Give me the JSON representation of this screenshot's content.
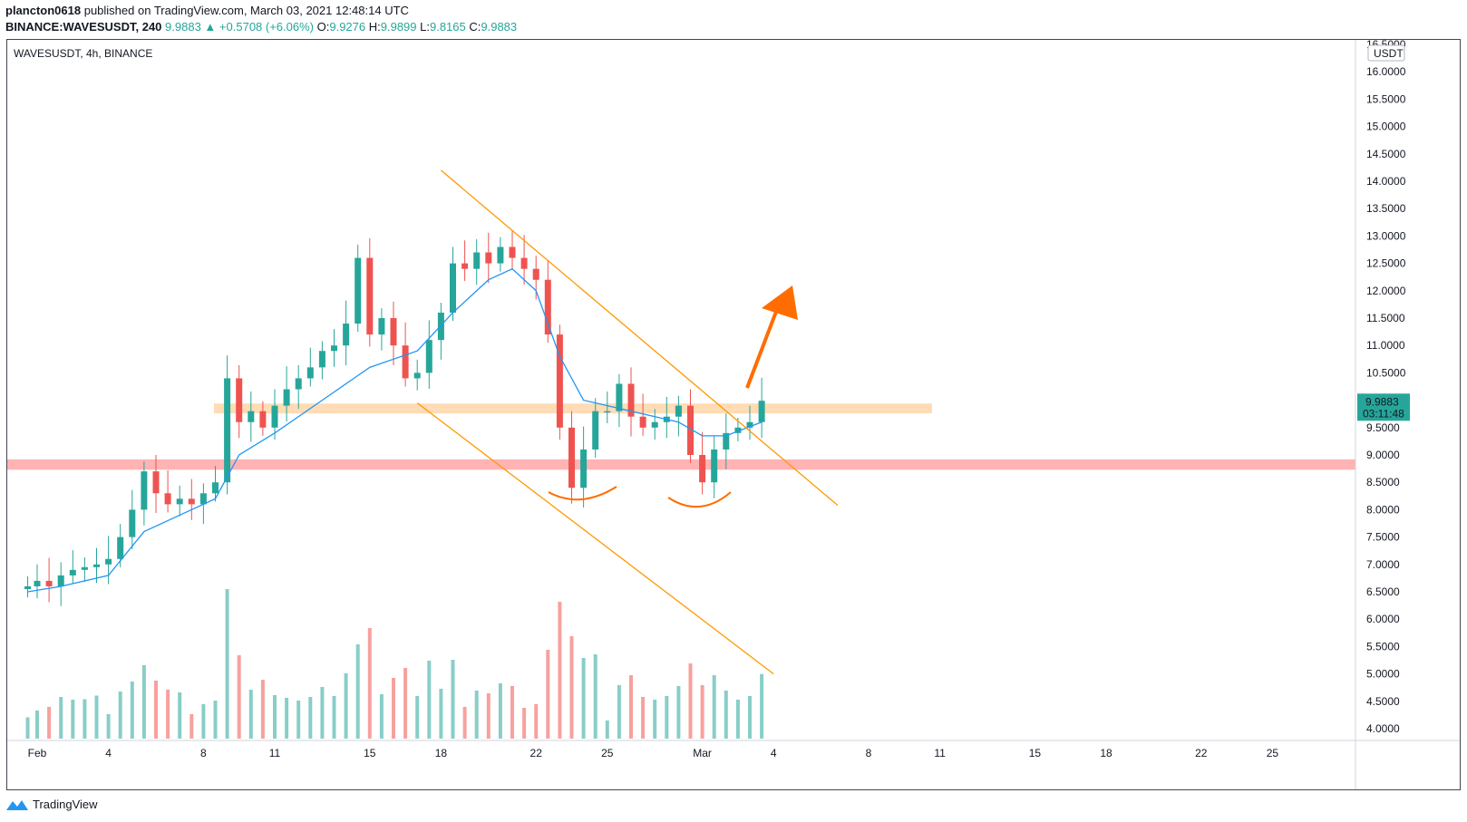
{
  "header": {
    "author": "plancton0618",
    "published_text": "published on TradingView.com, March 03, 2021 12:48:14 UTC",
    "symbol": "BINANCE:WAVESUSDT, 240",
    "last": "9.9883",
    "change": "+0.5708 (+6.06%)",
    "o_label": "O:",
    "o": "9.9276",
    "h_label": "H:",
    "h": "9.9899",
    "l_label": "L:",
    "l": "9.8165",
    "c_label": "C:",
    "c": "9.9883"
  },
  "chart_title": "WAVESUSDT, 4h, BINANCE",
  "footer_brand": "TradingView",
  "colors": {
    "up": "#26a69a",
    "down": "#ef5350",
    "ma": "#2196f3",
    "channel": "#ff9800",
    "arrow": "#ff6d00",
    "resistance_zone": "#ffdcb5",
    "support_zone": "#ffb3b3"
  },
  "chart_data": {
    "type": "candlestick",
    "currency_label": "USDT",
    "y_ticks": [
      "4.0000",
      "4.5000",
      "5.0000",
      "5.5000",
      "6.0000",
      "6.5000",
      "7.0000",
      "7.5000",
      "8.0000",
      "8.5000",
      "9.0000",
      "9.5000",
      "10.5000",
      "11.0000",
      "11.5000",
      "12.0000",
      "12.5000",
      "13.0000",
      "13.5000",
      "14.0000",
      "14.5000",
      "15.0000",
      "15.5000",
      "16.0000",
      "16.5000"
    ],
    "y_range": [
      3.8,
      16.6
    ],
    "x_ticks": [
      {
        "label": "Feb",
        "d": 1
      },
      {
        "label": "4",
        "d": 4
      },
      {
        "label": "8",
        "d": 8
      },
      {
        "label": "11",
        "d": 11
      },
      {
        "label": "15",
        "d": 15
      },
      {
        "label": "18",
        "d": 18
      },
      {
        "label": "22",
        "d": 22
      },
      {
        "label": "25",
        "d": 25
      },
      {
        "label": "Mar",
        "d": 29
      },
      {
        "label": "4",
        "d": 32
      },
      {
        "label": "8",
        "d": 36
      },
      {
        "label": "11",
        "d": 39
      },
      {
        "label": "15",
        "d": 43
      },
      {
        "label": "18",
        "d": 46
      },
      {
        "label": "22",
        "d": 50
      },
      {
        "label": "25",
        "d": 53
      }
    ],
    "last_price_label": "9.9883",
    "countdown_label": "03:11:48",
    "resistance_zone": [
      9.76,
      9.94
    ],
    "support_zone": [
      8.73,
      8.92
    ],
    "channel_upper": [
      [
        18.0,
        14.2
      ],
      [
        34.7,
        8.08
      ]
    ],
    "channel_lower": [
      [
        17.0,
        9.95
      ],
      [
        32.0,
        5.0
      ]
    ],
    "series_close": [
      [
        0.6,
        6.6
      ],
      [
        1.0,
        6.7
      ],
      [
        1.5,
        6.6
      ],
      [
        2.0,
        6.8
      ],
      [
        2.5,
        6.9
      ],
      [
        3.0,
        6.95
      ],
      [
        3.5,
        7.0
      ],
      [
        4.0,
        7.1
      ],
      [
        4.5,
        7.5
      ],
      [
        5.0,
        8.0
      ],
      [
        5.5,
        8.7
      ],
      [
        6.0,
        8.3
      ],
      [
        6.5,
        8.1
      ],
      [
        7.0,
        8.2
      ],
      [
        7.5,
        8.1
      ],
      [
        8.0,
        8.3
      ],
      [
        8.5,
        8.5
      ],
      [
        9.0,
        10.4
      ],
      [
        9.5,
        9.6
      ],
      [
        10.0,
        9.8
      ],
      [
        10.5,
        9.5
      ],
      [
        11.0,
        9.9
      ],
      [
        11.5,
        10.2
      ],
      [
        12.0,
        10.4
      ],
      [
        12.5,
        10.6
      ],
      [
        13.0,
        10.9
      ],
      [
        13.5,
        11.0
      ],
      [
        14.0,
        11.4
      ],
      [
        14.5,
        12.6
      ],
      [
        15.0,
        11.2
      ],
      [
        15.5,
        11.5
      ],
      [
        16.0,
        11.0
      ],
      [
        16.5,
        10.4
      ],
      [
        17.0,
        10.5
      ],
      [
        17.5,
        11.1
      ],
      [
        18.0,
        11.6
      ],
      [
        18.5,
        12.5
      ],
      [
        19.0,
        12.4
      ],
      [
        19.5,
        12.7
      ],
      [
        20.0,
        12.5
      ],
      [
        20.5,
        12.8
      ],
      [
        21.0,
        12.6
      ],
      [
        21.5,
        12.4
      ],
      [
        22.0,
        12.2
      ],
      [
        22.5,
        11.2
      ],
      [
        23.0,
        9.5
      ],
      [
        23.5,
        8.4
      ],
      [
        24.0,
        9.1
      ],
      [
        24.5,
        9.8
      ],
      [
        25.0,
        9.8
      ],
      [
        25.5,
        10.3
      ],
      [
        26.0,
        9.7
      ],
      [
        26.5,
        9.5
      ],
      [
        27.0,
        9.6
      ],
      [
        27.5,
        9.7
      ],
      [
        28.0,
        9.9
      ],
      [
        28.5,
        9.0
      ],
      [
        29.0,
        8.5
      ],
      [
        29.5,
        9.1
      ],
      [
        30.0,
        9.4
      ],
      [
        30.5,
        9.5
      ],
      [
        31.0,
        9.6
      ],
      [
        31.5,
        9.99
      ]
    ],
    "series_ma": [
      [
        0.6,
        6.5
      ],
      [
        2.0,
        6.6
      ],
      [
        4.0,
        6.8
      ],
      [
        5.5,
        7.6
      ],
      [
        7.0,
        7.9
      ],
      [
        8.5,
        8.2
      ],
      [
        9.5,
        9.0
      ],
      [
        11.0,
        9.4
      ],
      [
        13.0,
        10.0
      ],
      [
        15.0,
        10.6
      ],
      [
        17.0,
        10.9
      ],
      [
        18.5,
        11.6
      ],
      [
        20.0,
        12.2
      ],
      [
        21.0,
        12.4
      ],
      [
        22.0,
        12.0
      ],
      [
        23.0,
        10.8
      ],
      [
        24.0,
        10.0
      ],
      [
        25.0,
        9.9
      ],
      [
        26.0,
        9.8
      ],
      [
        27.0,
        9.7
      ],
      [
        28.0,
        9.6
      ],
      [
        29.0,
        9.35
      ],
      [
        30.0,
        9.35
      ],
      [
        31.5,
        9.6
      ]
    ]
  }
}
